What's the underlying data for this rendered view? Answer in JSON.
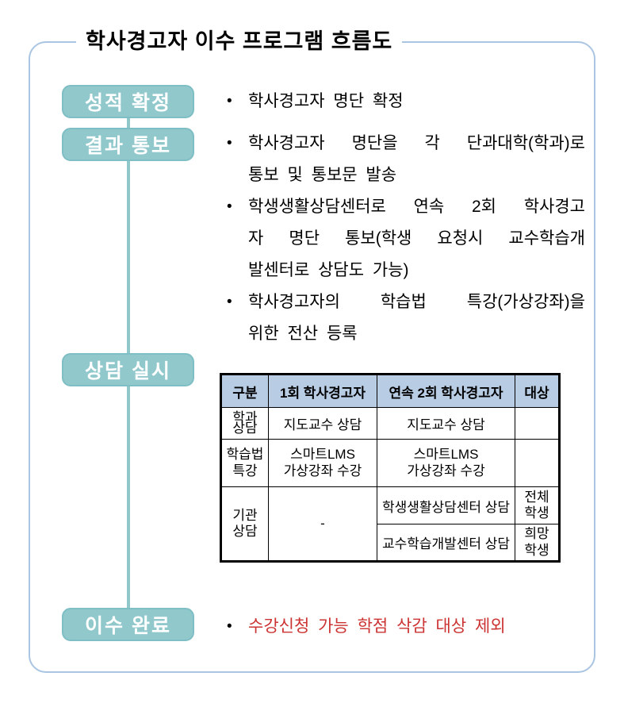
{
  "page": {
    "title": "학사경고자 이수 프로그램 흐름도"
  },
  "colors": {
    "stage_fill": "#90C8CC",
    "stage_border": "#7FBEC4",
    "frame_border": "#A9C5E2",
    "table_header_bg": "#B8CCE4",
    "alert_text": "#CC3333"
  },
  "stages": [
    {
      "label": "성적 확정"
    },
    {
      "label": "결과 통보"
    },
    {
      "label": "상담 실시"
    },
    {
      "label": "이수 완료"
    }
  ],
  "notes": {
    "grade": {
      "bullet1": {
        "lines": [
          "학사경고자 명단 확정"
        ]
      }
    },
    "notify": {
      "bullet1": {
        "lines": [
          "학사경고자 명단을 각 단과대학(학과)로",
          "통보 및 통보문 발송"
        ]
      },
      "bullet2": {
        "lines": [
          "학생생활상담센터로 연속 2회 학사경고",
          "자 명단 통보(학생 요청시 교수학습개",
          "발센터로 상담도 가능)"
        ]
      },
      "bullet3": {
        "lines": [
          "학사경고자의 학습법 특강(가상강좌)을",
          "위한 전산 등록"
        ]
      }
    },
    "complete": {
      "bullet1": {
        "lines": [
          "수강신청 가능 학점 삭감 대상 제외"
        ]
      }
    }
  },
  "table": {
    "headers": [
      "구분",
      "1회 학사경고자",
      "연속 2회 학사경고자",
      "대상"
    ],
    "rows": {
      "dept": {
        "label": "학과\n상담",
        "first": "지도교수 상담",
        "second": "지도교수 상담",
        "target": ""
      },
      "lecture": {
        "label": "학습법\n특강",
        "first": "스마트LMS\n가상강좌 수강",
        "second": "스마트LMS\n가상강좌 수강",
        "target": ""
      },
      "org1": {
        "label": "기관\n상담",
        "first": "-",
        "second": "학생생활상담센터 상담",
        "target": "전체\n학생"
      },
      "org2": {
        "second": "교수학습개발센터 상담",
        "target": "희망\n학생"
      }
    }
  }
}
